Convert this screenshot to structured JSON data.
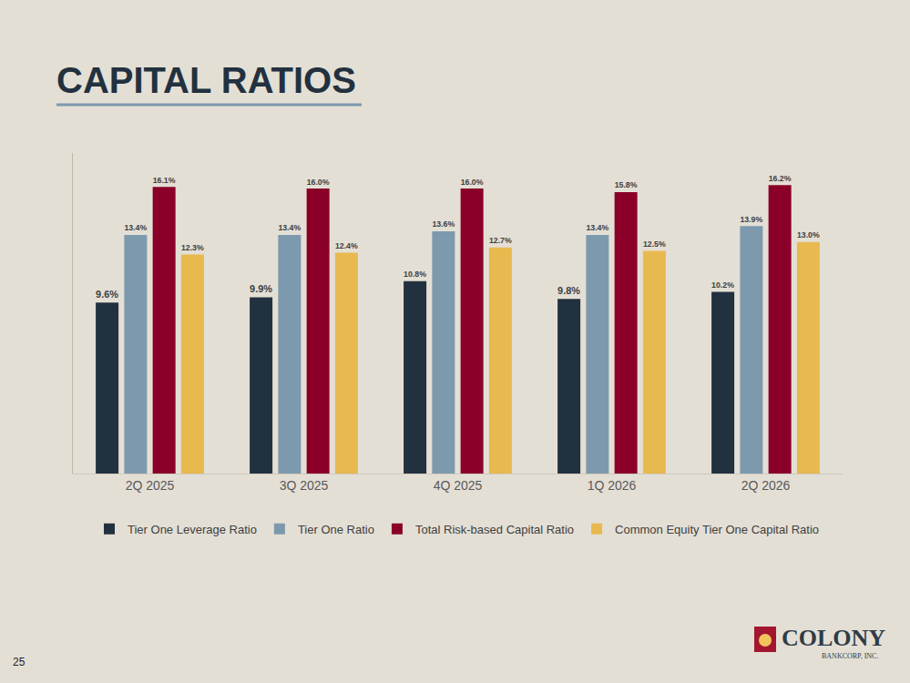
{
  "chart_data": {
    "type": "bar",
    "title": "CAPITAL RATIOS",
    "categories": [
      "2Q 2025",
      "3Q 2025",
      "4Q 2025",
      "1Q 2026",
      "2Q 2026"
    ],
    "series": [
      {
        "name": "Tier One Leverage Ratio",
        "color": "#22313f",
        "values": [
          9.6,
          9.9,
          10.8,
          9.8,
          10.2
        ],
        "value_labels": [
          "9.6%",
          "9.9%",
          "10.8%",
          "9.8%",
          "10.2%"
        ]
      },
      {
        "name": "Tier One Ratio",
        "color": "#7d99ad",
        "values": [
          13.4,
          13.4,
          13.6,
          13.4,
          13.9
        ],
        "value_labels": [
          "13.4%",
          "13.4%",
          "13.6%",
          "13.4%",
          "13.9%"
        ]
      },
      {
        "name": "Total Risk-based Capital Ratio",
        "color": "#8a0029",
        "values": [
          16.1,
          16.0,
          16.0,
          15.8,
          16.2
        ],
        "value_labels": [
          "16.1%",
          "16.0%",
          "16.0%",
          "15.8%",
          "16.2%"
        ]
      },
      {
        "name": "Common Equity Tier One Capital Ratio",
        "color": "#e8b94f",
        "values": [
          12.3,
          12.4,
          12.7,
          12.5,
          13.0
        ],
        "value_labels": [
          "12.3%",
          "12.4%",
          "12.7%",
          "12.5%",
          "13.0%"
        ]
      }
    ],
    "ylim": [
      0,
      18
    ],
    "grid": false,
    "data_labels": true,
    "tick_labels": "x",
    "legend": "bottom"
  },
  "page_number": "25",
  "logo": {
    "name": "COLONY",
    "subtitle": "BANKCORP, INC."
  }
}
